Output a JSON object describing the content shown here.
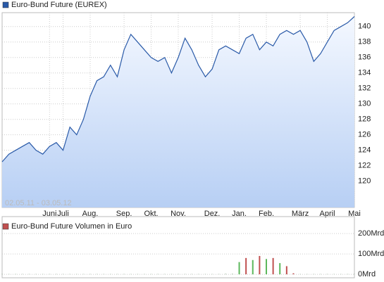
{
  "chart_data": [
    {
      "type": "area",
      "annotation": "02.05.11 - 03.05.12",
      "categories": [
        null,
        null,
        null,
        null,
        null,
        null,
        null,
        "Juni",
        null,
        "Juli",
        null,
        null,
        null,
        "Aug.",
        null,
        null,
        null,
        null,
        "Sep.",
        null,
        null,
        null,
        "Okt.",
        null,
        null,
        null,
        "Nov.",
        null,
        null,
        null,
        null,
        "Dez.",
        null,
        null,
        null,
        "Jan.",
        null,
        null,
        null,
        "Feb.",
        null,
        null,
        null,
        null,
        "März",
        null,
        null,
        null,
        "April",
        null,
        null,
        null,
        "Mai"
      ],
      "series": [
        {
          "name": "Euro-Bund Future (EUREX)",
          "color": "#2a5aa8",
          "values": [
            122.5,
            123.5,
            124,
            124.5,
            125,
            124,
            123.5,
            124.5,
            125,
            124,
            127,
            126,
            128,
            131,
            133,
            133.5,
            135,
            133.5,
            137,
            139,
            138,
            137,
            136,
            135.5,
            136,
            134,
            136,
            138.5,
            137,
            135,
            133.5,
            134.5,
            137,
            137.5,
            137,
            136.5,
            138.5,
            139,
            137,
            138,
            137.5,
            139,
            139.5,
            139,
            139.5,
            138,
            135.5,
            136.5,
            138,
            139.5,
            140,
            140.5,
            141.3
          ]
        }
      ],
      "ylim": [
        116.6,
        141.8
      ],
      "yticks": [
        120,
        122,
        124,
        126,
        128,
        130,
        132,
        134,
        136,
        138,
        140
      ],
      "grid": true
    },
    {
      "type": "bar",
      "series": [
        {
          "name": "Euro-Bund Future Volumen in Euro",
          "color": "#c05050",
          "values": [
            1,
            1,
            1,
            1,
            1,
            1,
            1,
            1,
            1,
            1,
            1,
            1,
            1,
            1,
            1,
            1,
            1,
            1,
            1,
            1,
            1,
            1,
            1,
            1,
            1,
            1,
            1,
            1,
            1,
            1,
            1,
            1,
            1,
            2,
            2,
            60,
            80,
            70,
            90,
            75,
            80,
            55,
            40,
            5,
            1,
            1,
            1,
            1,
            1,
            1,
            1,
            1,
            1
          ]
        }
      ],
      "bar_colors": [
        "#8a8",
        "#8a8",
        "#8a8",
        "#8a8",
        "#8a8",
        "#8a8",
        "#8a8",
        "#8a8",
        "#8a8",
        "#8a8",
        "#8a8",
        "#8a8",
        "#8a8",
        "#8a8",
        "#8a8",
        "#8a8",
        "#8a8",
        "#8a8",
        "#8a8",
        "#8a8",
        "#8a8",
        "#8a8",
        "#8a8",
        "#8a8",
        "#8a8",
        "#8a8",
        "#8a8",
        "#8a8",
        "#8a8",
        "#8a8",
        "#8a8",
        "#8a8",
        "#8a8",
        "#8a8",
        "#8a8",
        "#5cb85c",
        "#c05050",
        "#5cb85c",
        "#c05050",
        "#5cb85c",
        "#c05050",
        "#5cb85c",
        "#c05050",
        "#c05050",
        "#8a8",
        "#8a8",
        "#8a8",
        "#8a8",
        "#8a8",
        "#8a8",
        "#8a8",
        "#8a8",
        "#8a8"
      ],
      "ylim": [
        -17,
        283
      ],
      "yticks": [
        {
          "value": 0,
          "label": "0Mrd"
        },
        {
          "value": 100,
          "label": "100Mrd"
        },
        {
          "value": 200,
          "label": "200Mrd"
        }
      ],
      "grid": true
    }
  ]
}
